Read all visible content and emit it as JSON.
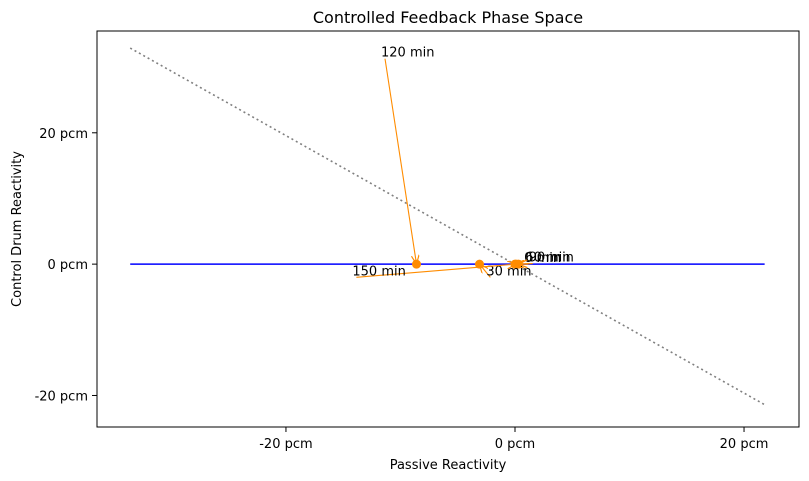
{
  "chart_data": {
    "type": "scatter",
    "title": "Controlled Feedback Phase Space",
    "xlabel": "Passive Reactivity",
    "ylabel": "Control Drum Reactivity",
    "xlim": [
      -36.5,
      24.8
    ],
    "ylim": [
      -24.8,
      35.5
    ],
    "x_ticks": [
      {
        "value": -20,
        "label": "-20 pcm"
      },
      {
        "value": 0,
        "label": "0 pcm"
      },
      {
        "value": 20,
        "label": "20 pcm"
      }
    ],
    "y_ticks": [
      {
        "value": 20,
        "label": "20 pcm"
      },
      {
        "value": 0,
        "label": "0 pcm"
      },
      {
        "value": -20,
        "label": "-20 pcm"
      }
    ],
    "grid": false,
    "zero_line": {
      "x": [
        -33.6,
        21.8
      ],
      "y": 0,
      "color": "#0000ff"
    },
    "diagonal": {
      "x": [
        -33.6,
        21.8
      ],
      "y": [
        32.9,
        -21.4
      ],
      "color": "#808080",
      "style": "dotted"
    },
    "points": [
      {
        "x": 0.0,
        "y": 0.0
      },
      {
        "x": -3.1,
        "y": 0.0
      },
      {
        "x": 0.3,
        "y": 0.0
      },
      {
        "x": -8.6,
        "y": 0.0
      },
      {
        "x": 0.1,
        "y": 0.0
      }
    ],
    "point_color": "#ff8c00",
    "annotations": [
      {
        "text": "0 min",
        "point": 0,
        "tx": 0.8,
        "ty": 0.9
      },
      {
        "text": "30 min",
        "point": 1,
        "tx": -2.5,
        "ty": -1.1
      },
      {
        "text": "60 min",
        "point": 2,
        "tx": 0.9,
        "ty": 1.0
      },
      {
        "text": "120 min",
        "point": 3,
        "tx": -11.7,
        "ty": 32.2
      },
      {
        "text": "150 min",
        "point": 4,
        "tx": -14.2,
        "ty": -1.1
      },
      {
        "text": "90 min",
        "point": 2,
        "tx": 1.2,
        "ty": 1.0
      }
    ],
    "arrow_color": "#ff8c00"
  }
}
